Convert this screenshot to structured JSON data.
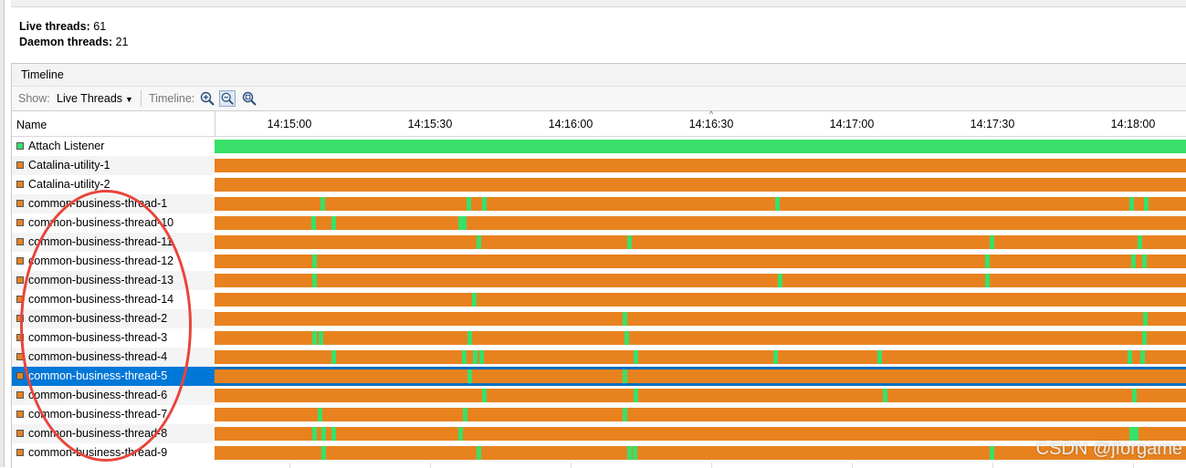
{
  "summary": {
    "live_label": "Live threads:",
    "live_value": "61",
    "daemon_label": "Daemon threads:",
    "daemon_value": "21"
  },
  "panel": {
    "title": "Timeline"
  },
  "toolbar": {
    "show_label": "Show:",
    "show_value": "Live Threads",
    "timeline_label": "Timeline:",
    "zoom_in_icon": "zoom-in-icon",
    "zoom_out_icon": "zoom-out-icon",
    "zoom_fit_icon": "zoom-fit-icon"
  },
  "table": {
    "name_header": "Name"
  },
  "timeline_ticks": [
    "14:15:00",
    "14:15:30",
    "14:16:00",
    "14:16:30",
    "14:17:00",
    "14:17:30",
    "14:18:00"
  ],
  "colors": {
    "running": "#38e06a",
    "running_alt": "#2fd05f",
    "waiting": "#e8821e",
    "selected": "#0078d7",
    "annotation": "#e8453c"
  },
  "threads": [
    {
      "name": "Attach Listener",
      "state": "running",
      "running_at": []
    },
    {
      "name": "Catalina-utility-1",
      "state": "waiting",
      "running_at": []
    },
    {
      "name": "Catalina-utility-2",
      "state": "waiting",
      "running_at": []
    },
    {
      "name": "common-business-thread-1",
      "state": "waiting",
      "running_at": [
        0.109,
        0.259,
        0.275,
        0.577,
        0.942,
        0.957
      ]
    },
    {
      "name": "common-business-thread-10",
      "state": "waiting",
      "running_at": [
        0.1,
        0.12,
        0.251,
        0.255
      ]
    },
    {
      "name": "common-business-thread-11",
      "state": "waiting",
      "running_at": [
        0.27,
        0.425,
        0.798,
        0.95
      ]
    },
    {
      "name": "common-business-thread-12",
      "state": "waiting",
      "running_at": [
        0.101,
        0.793,
        0.944,
        0.955
      ]
    },
    {
      "name": "common-business-thread-13",
      "state": "waiting",
      "running_at": [
        0.101,
        0.58,
        0.793
      ]
    },
    {
      "name": "common-business-thread-14",
      "state": "waiting",
      "running_at": [
        0.265
      ]
    },
    {
      "name": "common-business-thread-2",
      "state": "waiting",
      "running_at": [
        0.42,
        0.956
      ]
    },
    {
      "name": "common-business-thread-3",
      "state": "waiting",
      "running_at": [
        0.101,
        0.107,
        0.26,
        0.422,
        0.955
      ]
    },
    {
      "name": "common-business-thread-4",
      "state": "waiting",
      "running_at": [
        0.12,
        0.255,
        0.266,
        0.273,
        0.431,
        0.575,
        0.682,
        0.94,
        0.953
      ]
    },
    {
      "name": "common-business-thread-5",
      "state": "waiting",
      "running_at": [
        0.26,
        0.42
      ],
      "selected": true
    },
    {
      "name": "common-business-thread-6",
      "state": "waiting",
      "running_at": [
        0.275,
        0.431,
        0.688,
        0.945
      ]
    },
    {
      "name": "common-business-thread-7",
      "state": "waiting",
      "running_at": [
        0.106,
        0.256,
        0.42
      ]
    },
    {
      "name": "common-business-thread-8",
      "state": "waiting",
      "running_at": [
        0.101,
        0.11,
        0.12,
        0.251,
        0.942,
        0.946
      ]
    },
    {
      "name": "common-business-thread-9",
      "state": "waiting",
      "running_at": [
        0.11,
        0.27,
        0.425,
        0.43,
        0.798
      ]
    }
  ],
  "watermark": "CSDN @jforgame"
}
